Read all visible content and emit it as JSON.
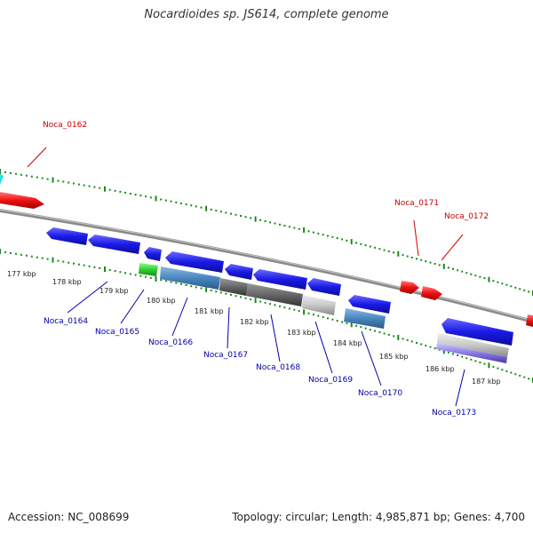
{
  "title": "Nocardioides sp. JS614, complete genome",
  "footer": {
    "accession": "Accession: NC_008699",
    "summary": "Topology: circular; Length: 4,985,871 bp; Genes: 4,700"
  },
  "colors": {
    "forward_gene": "#ee1111",
    "reverse_gene": "#1a1ae6",
    "forward_label": "#cc0000",
    "reverse_label": "#0000aa",
    "backbone": "#8a8a8a",
    "ruler": "#1a8a1a"
  },
  "ticks": [
    "177 kbp",
    "178 kbp",
    "179 kbp",
    "180 kbp",
    "181 kbp",
    "182 kbp",
    "183 kbp",
    "184 kbp",
    "185 kbp",
    "186 kbp",
    "187 kbp"
  ],
  "forward_labels": [
    "Noca_0162",
    "Noca_0171",
    "Noca_0172"
  ],
  "reverse_labels": [
    "Noca_0164",
    "Noca_0165",
    "Noca_0166",
    "Noca_0167",
    "Noca_0168",
    "Noca_0169",
    "Noca_0170",
    "Noca_0173"
  ]
}
